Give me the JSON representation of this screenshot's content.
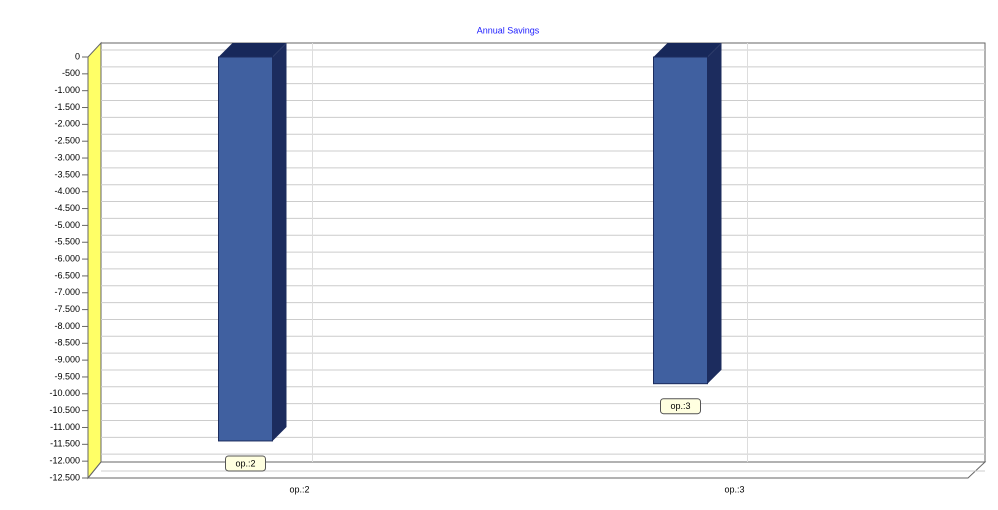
{
  "chart_data": {
    "type": "bar",
    "title": "Annual Savings",
    "categories": [
      "op.:2",
      "op.:3"
    ],
    "values": [
      -11400,
      -9700
    ],
    "color": "#4060a0",
    "ylim": [
      -12500,
      0
    ],
    "yticks": [
      0,
      -500,
      {
        "value": -1000,
        "label": "-1.000"
      },
      {
        "value": -1500,
        "label": "-1.500"
      },
      {
        "value": -2000,
        "label": "-2.000"
      },
      {
        "value": -2500,
        "label": "-2.500"
      },
      {
        "value": -3000,
        "label": "-3.000"
      },
      {
        "value": -3500,
        "label": "-3.500"
      },
      {
        "value": -4000,
        "label": "-4.000"
      },
      {
        "value": -4500,
        "label": "-4.500"
      },
      {
        "value": -5000,
        "label": "-5.000"
      },
      {
        "value": -5500,
        "label": "-5.500"
      },
      {
        "value": -6000,
        "label": "-6.000"
      },
      {
        "value": -6500,
        "label": "-6.500"
      },
      {
        "value": -7000,
        "label": "-7.000"
      },
      {
        "value": -7500,
        "label": "-7.500"
      },
      {
        "value": -8000,
        "label": "-8.000"
      },
      {
        "value": -8500,
        "label": "-8.500"
      },
      {
        "value": -9000,
        "label": "-9.000"
      },
      {
        "value": -9500,
        "label": "-9.500"
      },
      {
        "value": -10000,
        "label": "-10.000"
      },
      {
        "value": -10500,
        "label": "-10.500"
      },
      {
        "value": -11000,
        "label": "-11.000"
      },
      {
        "value": -11500,
        "label": "-11.500"
      },
      {
        "value": -12000,
        "label": "-12.000"
      },
      {
        "value": -12500,
        "label": "-12.500"
      }
    ],
    "grid": true
  }
}
